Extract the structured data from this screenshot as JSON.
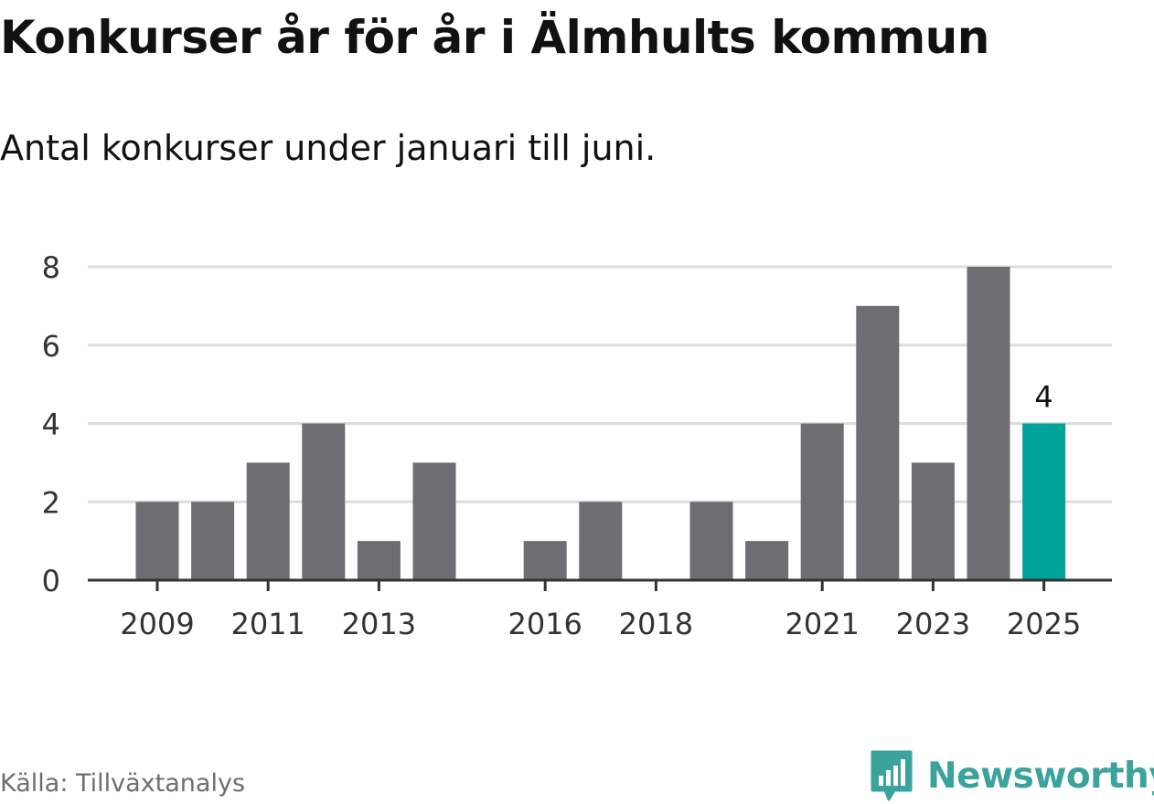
{
  "header": {
    "title": "Konkurser år för år i Älmhults kommun",
    "subtitle": "Antal konkurser under januari till juni."
  },
  "footer": {
    "source": "Källa: Tillväxtanalys",
    "brand": "Newsworthy",
    "brand_icon": "bar-chart-speech-bubble-icon"
  },
  "colors": {
    "bar": "#6e6d72",
    "highlight": "#00a39a",
    "grid": "#dddddd",
    "axis": "#333333",
    "brand": "#3aa39c"
  },
  "chart_data": {
    "type": "bar",
    "categories": [
      "2009",
      "2010",
      "2011",
      "2012",
      "2013",
      "2014",
      "2015",
      "2016",
      "2017",
      "2018",
      "2019",
      "2020",
      "2021",
      "2022",
      "2023",
      "2024",
      "2025"
    ],
    "values": [
      2,
      2,
      3,
      4,
      1,
      3,
      0,
      1,
      2,
      0,
      2,
      1,
      4,
      7,
      3,
      8,
      4
    ],
    "x_tick_labels": [
      "2009",
      "2011",
      "2013",
      "2016",
      "2018",
      "2021",
      "2023",
      "2025"
    ],
    "y_ticks": [
      0,
      2,
      4,
      6,
      8
    ],
    "ylim": [
      0,
      8
    ],
    "highlight_category": "2025",
    "data_labels": [
      {
        "category": "2025",
        "value": 4,
        "text": "4"
      }
    ],
    "title": "Konkurser år för år i Älmhults kommun",
    "subtitle": "Antal konkurser under januari till juni.",
    "xlabel": "",
    "ylabel": "",
    "grid": true,
    "legend": "none"
  }
}
